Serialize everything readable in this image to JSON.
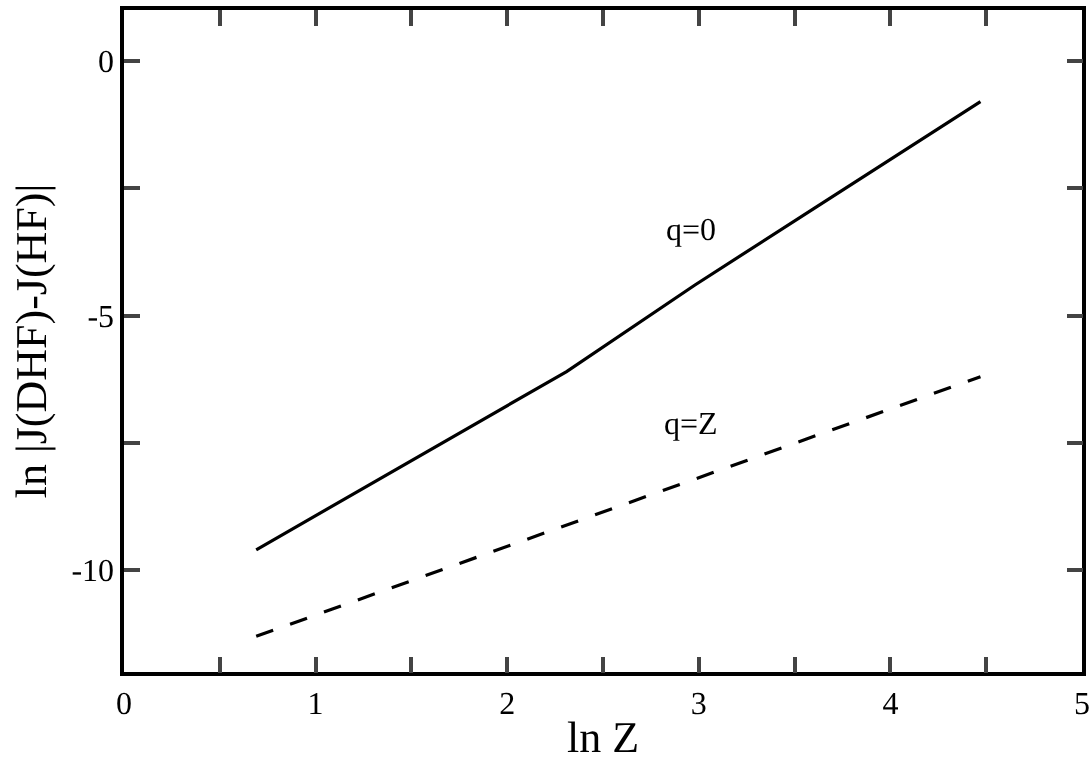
{
  "chart_data": {
    "type": "line",
    "xlabel": "ln Z",
    "ylabel": "ln |J(DHF)-J(HF)|",
    "xlim": [
      0,
      5
    ],
    "ylim": [
      -12,
      1
    ],
    "xticks": [
      0,
      {
        "value": 0.5,
        "label": null
      },
      1,
      {
        "value": 1.5,
        "label": null
      },
      2,
      {
        "value": 2.5,
        "label": null
      },
      3,
      {
        "value": 3.5,
        "label": null
      },
      4,
      {
        "value": 4.5,
        "label": null
      },
      5
    ],
    "yticks": [
      -10,
      {
        "value": -7.5,
        "label": null
      },
      -5,
      {
        "value": -2.5,
        "label": null
      },
      0
    ],
    "grid": false,
    "legend": false,
    "marker": "none",
    "series": [
      {
        "name": "q=0",
        "color": "#000000",
        "line_style": "solid",
        "x": [
          0.69,
          2.31,
          2.98,
          3.6,
          4.47
        ],
        "values": [
          -9.6,
          -6.1,
          -4.4,
          -2.9,
          -0.8
        ]
      },
      {
        "name": "q=Z",
        "color": "#000000",
        "line_style": "dashed",
        "x": [
          0.69,
          4.47
        ],
        "values": [
          -11.3,
          -6.2
        ]
      }
    ]
  }
}
